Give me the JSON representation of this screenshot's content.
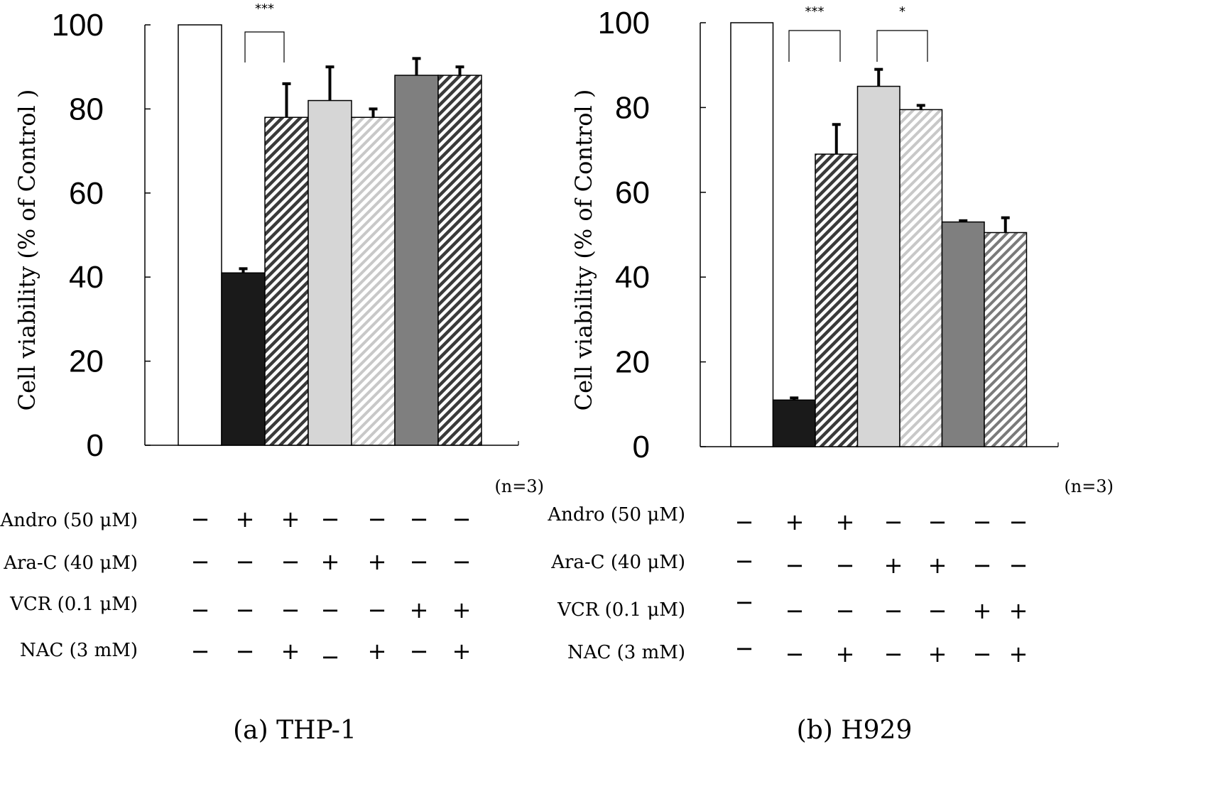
{
  "chart_data": [
    {
      "type": "bar",
      "caption": "(a) THP-1",
      "ylabel": "Cell viability (% of Control )",
      "ylim": [
        0,
        100
      ],
      "yticks": [
        0,
        20,
        40,
        60,
        80,
        100
      ],
      "n_label": "(n=3)",
      "bars": [
        {
          "value": 100,
          "error": 0
        },
        {
          "value": 41,
          "error": 1
        },
        {
          "value": 78,
          "error": 8
        },
        {
          "value": 82,
          "error": 8
        },
        {
          "value": 78,
          "error": 2
        },
        {
          "value": 88,
          "error": 4
        },
        {
          "value": 88,
          "error": 2
        }
      ],
      "bar_styles": [
        "white",
        "black",
        "hatch-dark",
        "light-gray",
        "hatch-light",
        "gray",
        "hatch-dark"
      ],
      "significance": [
        {
          "from": 1,
          "to": 2,
          "label": "***"
        }
      ],
      "conditions": [
        {
          "label": "Andro (50 μM)",
          "signs": [
            "−",
            "+",
            "+",
            "−",
            "−",
            "−",
            "−"
          ]
        },
        {
          "label": "Ara-C (40 μM)",
          "signs": [
            "−",
            "−",
            "−",
            "+",
            "+",
            "−",
            "−"
          ]
        },
        {
          "label": "VCR (0.1 μM)",
          "signs": [
            "−",
            "−",
            "−",
            "−",
            "−",
            "+",
            "+"
          ]
        },
        {
          "label": "NAC (3 mM)",
          "signs": [
            "−",
            "−",
            "+",
            "−",
            "+",
            "−",
            "+"
          ]
        }
      ]
    },
    {
      "type": "bar",
      "caption": "(b) H929",
      "ylabel": "Cell viability (% of Control )",
      "ylim": [
        0,
        100
      ],
      "yticks": [
        0,
        20,
        40,
        60,
        80,
        100
      ],
      "n_label": "(n=3)",
      "bars": [
        {
          "value": 100,
          "error": 0
        },
        {
          "value": 11,
          "error": 0.5
        },
        {
          "value": 69,
          "error": 7
        },
        {
          "value": 85,
          "error": 4
        },
        {
          "value": 79.5,
          "error": 1
        },
        {
          "value": 53,
          "error": 0.3
        },
        {
          "value": 50.5,
          "error": 3.5
        }
      ],
      "bar_styles": [
        "white",
        "black",
        "hatch-dark",
        "light-gray",
        "hatch-light",
        "gray",
        "hatch-mid"
      ],
      "significance": [
        {
          "from": 1,
          "to": 2,
          "label": "***"
        },
        {
          "from": 3,
          "to": 4,
          "label": "*"
        }
      ],
      "conditions": [
        {
          "label": "Andro (50 μM)",
          "signs": [
            "−",
            "+",
            "+",
            "−",
            "−",
            "−",
            "−"
          ]
        },
        {
          "label": "Ara-C (40 μM)",
          "signs": [
            "−",
            "−",
            "−",
            "+",
            "+",
            "−",
            "−"
          ]
        },
        {
          "label": "VCR (0.1 μM)",
          "signs": [
            "−",
            "−",
            "−",
            "−",
            "−",
            "+",
            "+"
          ]
        },
        {
          "label": "NAC (3 mM)",
          "signs": [
            "−",
            "−",
            "+",
            "−",
            "+",
            "−",
            "+"
          ]
        }
      ]
    }
  ]
}
